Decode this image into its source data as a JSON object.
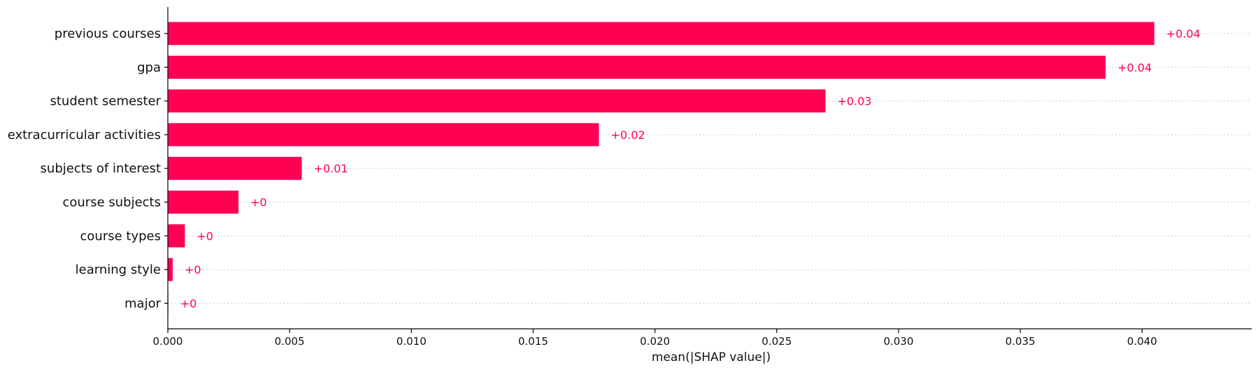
{
  "chart_data": {
    "type": "bar",
    "orientation": "horizontal",
    "categories": [
      "previous courses",
      "gpa",
      "student semester",
      "extracurricular activities",
      "subjects of interest",
      "course subjects",
      "course types",
      "learning style",
      "major"
    ],
    "values": [
      0.0405,
      0.0385,
      0.027,
      0.0177,
      0.0055,
      0.0029,
      0.0007,
      0.0002,
      2e-05
    ],
    "value_labels": [
      "+0.04",
      "+0.04",
      "+0.03",
      "+0.02",
      "+0.01",
      "+0",
      "+0",
      "+0",
      "+0"
    ],
    "xlabel": "mean(|SHAP value|)",
    "xlim": [
      0,
      0.0445
    ],
    "xticks": [
      0.0,
      0.005,
      0.01,
      0.015,
      0.02,
      0.025,
      0.03,
      0.035,
      0.04
    ],
    "xtick_labels": [
      "0.000",
      "0.005",
      "0.010",
      "0.015",
      "0.020",
      "0.025",
      "0.030",
      "0.035",
      "0.040"
    ],
    "bar_color": "#ff0052",
    "label_color": "#ff0052",
    "grid": "horizontal-dotted"
  }
}
